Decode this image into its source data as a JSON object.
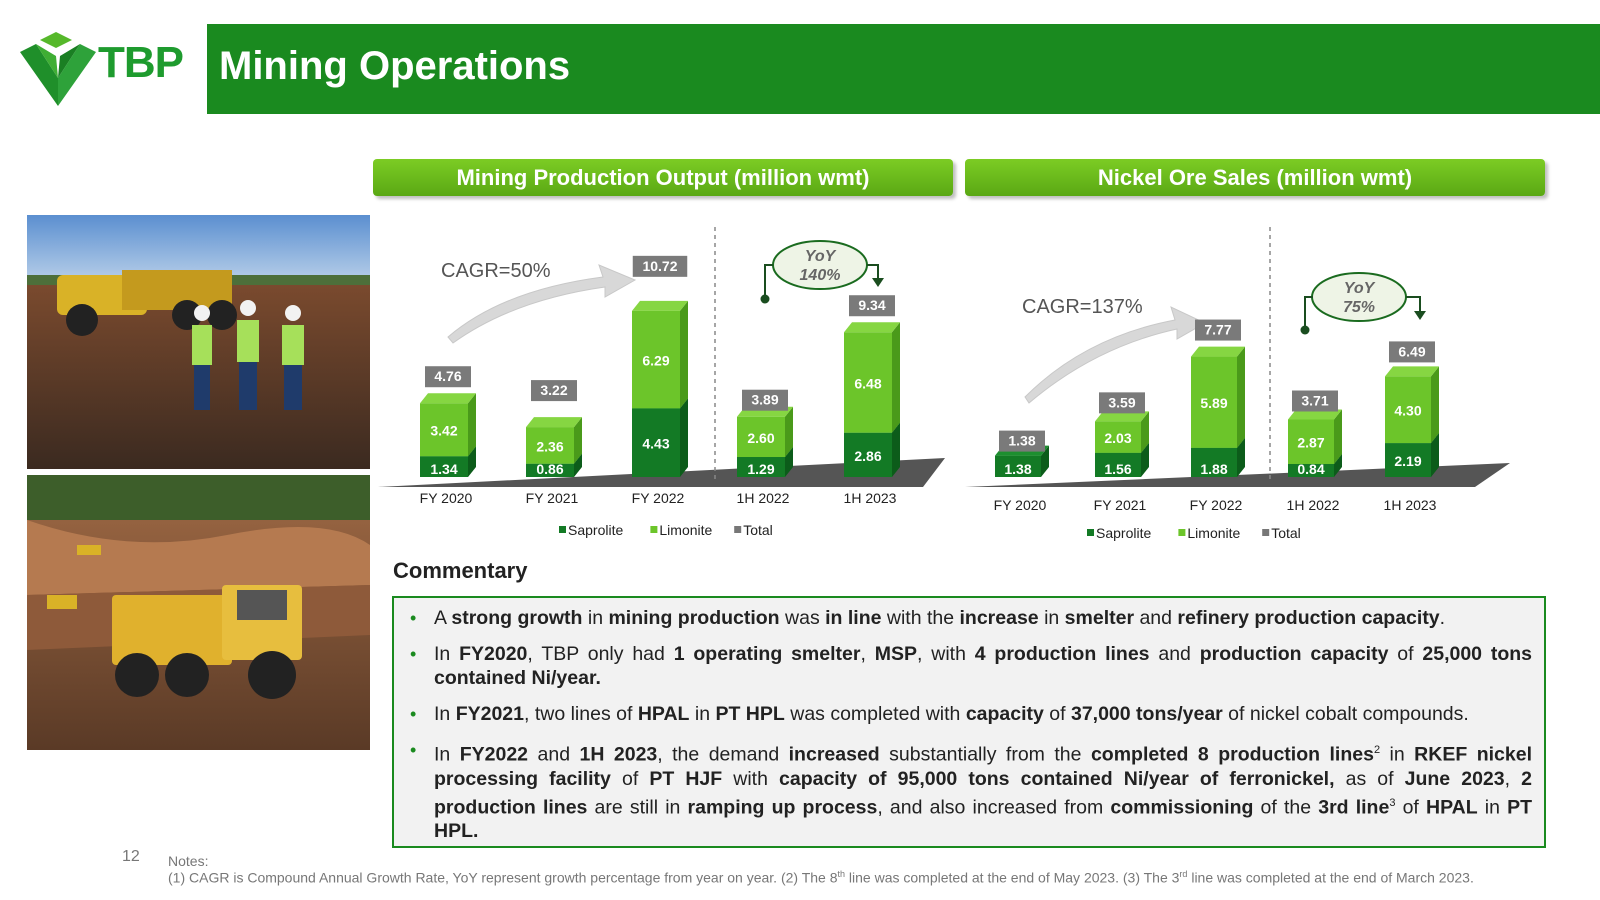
{
  "brand": {
    "logo_text": "TBP",
    "primary_color": "#1a8a1f",
    "accent_color": "#7ccc24"
  },
  "header": {
    "title": "Mining Operations"
  },
  "charts_headers": {
    "production": "Mining Production Output (million wmt)",
    "sales": "Nickel Ore Sales (million wmt)"
  },
  "chart_data": [
    {
      "type": "bar",
      "stacked": true,
      "title": "Mining Production Output (million wmt)",
      "categories": [
        "FY 2020",
        "FY 2021",
        "FY 2022",
        "1H 2022",
        "1H 2023"
      ],
      "series": [
        {
          "name": "Saprolite",
          "color": "#137a25",
          "values": [
            1.34,
            0.86,
            4.43,
            1.29,
            2.86
          ],
          "labels": [
            "1.34",
            "0.86",
            "4.43",
            "1.29",
            "2.86"
          ]
        },
        {
          "name": "Limonite",
          "color": "#6cc52a",
          "values": [
            3.42,
            2.36,
            6.29,
            2.6,
            6.48
          ],
          "labels": [
            "3.42",
            "2.36",
            "6.29",
            "2.60",
            "6.48"
          ]
        },
        {
          "name": "Total",
          "color": "#777777",
          "values": [
            4.76,
            3.22,
            10.72,
            3.89,
            9.34
          ],
          "labels": [
            "4.76",
            "3.22",
            "10.72",
            "3.89",
            "9.34"
          ]
        }
      ],
      "annotations": {
        "cagr": "CAGR=50%",
        "yoy_line1": "YoY",
        "yoy_line2": "140%"
      },
      "legend": "bottom",
      "grid": false
    },
    {
      "type": "bar",
      "stacked": true,
      "title": "Nickel Ore Sales (million wmt)",
      "categories": [
        "FY 2020",
        "FY 2021",
        "FY 2022",
        "1H 2022",
        "1H 2023"
      ],
      "series": [
        {
          "name": "Saprolite",
          "color": "#137a25",
          "values": [
            1.38,
            1.56,
            1.88,
            0.84,
            2.19
          ],
          "labels": [
            "1.38",
            "1.56",
            "1.88",
            "0.84",
            "2.19"
          ]
        },
        {
          "name": "Limonite",
          "color": "#6cc52a",
          "values": [
            0,
            2.03,
            5.89,
            2.87,
            4.3
          ],
          "labels": [
            "",
            "2.03",
            "5.89",
            "2.87",
            "4.30"
          ]
        },
        {
          "name": "Total",
          "color": "#777777",
          "values": [
            1.38,
            3.59,
            7.77,
            3.71,
            6.49
          ],
          "labels": [
            "1.38",
            "3.59",
            "7.77",
            "3.71",
            "6.49"
          ]
        }
      ],
      "annotations": {
        "cagr": "CAGR=137%",
        "yoy_line1": "YoY",
        "yoy_line2": "75%"
      },
      "legend": "bottom",
      "grid": false
    }
  ],
  "commentary": {
    "title": "Commentary",
    "items": [
      [
        {
          "t": "A "
        },
        {
          "t": "strong growth",
          "b": true
        },
        {
          "t": " in "
        },
        {
          "t": "mining production",
          "b": true
        },
        {
          "t": " was "
        },
        {
          "t": "in line",
          "b": true
        },
        {
          "t": " with the "
        },
        {
          "t": "increase",
          "b": true
        },
        {
          "t": " in "
        },
        {
          "t": "smelter",
          "b": true
        },
        {
          "t": " and "
        },
        {
          "t": "refinery production capacity",
          "b": true
        },
        {
          "t": "."
        }
      ],
      [
        {
          "t": "In "
        },
        {
          "t": "FY2020",
          "b": true
        },
        {
          "t": ", TBP only had "
        },
        {
          "t": "1 operating smelter",
          "b": true
        },
        {
          "t": ", "
        },
        {
          "t": "MSP",
          "b": true
        },
        {
          "t": ", with "
        },
        {
          "t": "4 production lines",
          "b": true
        },
        {
          "t": " and "
        },
        {
          "t": "production capacity",
          "b": true
        },
        {
          "t": " of "
        },
        {
          "t": "25,000 tons contained Ni/year.",
          "b": true
        }
      ],
      [
        {
          "t": "In "
        },
        {
          "t": "FY2021",
          "b": true
        },
        {
          "t": ", two lines of "
        },
        {
          "t": "HPAL",
          "b": true
        },
        {
          "t": " in "
        },
        {
          "t": "PT HPL",
          "b": true
        },
        {
          "t": " was completed with "
        },
        {
          "t": "capacity",
          "b": true
        },
        {
          "t": " of "
        },
        {
          "t": "37,000 tons/year",
          "b": true
        },
        {
          "t": " of nickel cobalt compounds."
        }
      ],
      [
        {
          "t": "In "
        },
        {
          "t": "FY2022",
          "b": true
        },
        {
          "t": " and "
        },
        {
          "t": "1H 2023",
          "b": true
        },
        {
          "t": ", the demand "
        },
        {
          "t": "increased",
          "b": true
        },
        {
          "t": " substantially from the "
        },
        {
          "t": "completed 8 production lines",
          "b": true
        },
        {
          "t": "2",
          "sup": true
        },
        {
          "t": " in "
        },
        {
          "t": "RKEF nickel processing facility",
          "b": true
        },
        {
          "t": " of "
        },
        {
          "t": "PT HJF",
          "b": true
        },
        {
          "t": " with "
        },
        {
          "t": "capacity of 95,000 tons contained Ni/year of ferronickel,",
          "b": true
        },
        {
          "t": " as of "
        },
        {
          "t": "June 2023",
          "b": true
        },
        {
          "t": ", "
        },
        {
          "t": "2 production lines",
          "b": true
        },
        {
          "t": " are still in "
        },
        {
          "t": "ramping up process",
          "b": true
        },
        {
          "t": ", and also increased from "
        },
        {
          "t": "commissioning",
          "b": true
        },
        {
          "t": " of the "
        },
        {
          "t": "3rd line",
          "b": true
        },
        {
          "t": "3",
          "sup": true
        },
        {
          "t": " of "
        },
        {
          "t": "HPAL",
          "b": true
        },
        {
          "t": " in "
        },
        {
          "t": "PT HPL.",
          "b": true
        }
      ]
    ]
  },
  "footer": {
    "page_number": "12",
    "notes_label": "Notes:",
    "notes_parts": [
      {
        "t": "(1) CAGR is Compound Annual Growth Rate, YoY represent growth percentage from year on year. (2) The 8"
      },
      {
        "t": "th",
        "sup": true
      },
      {
        "t": " line was completed at the end of May 2023. (3) The 3"
      },
      {
        "t": "rd",
        "sup": true
      },
      {
        "t": " line was completed at the end of March 2023."
      }
    ]
  }
}
